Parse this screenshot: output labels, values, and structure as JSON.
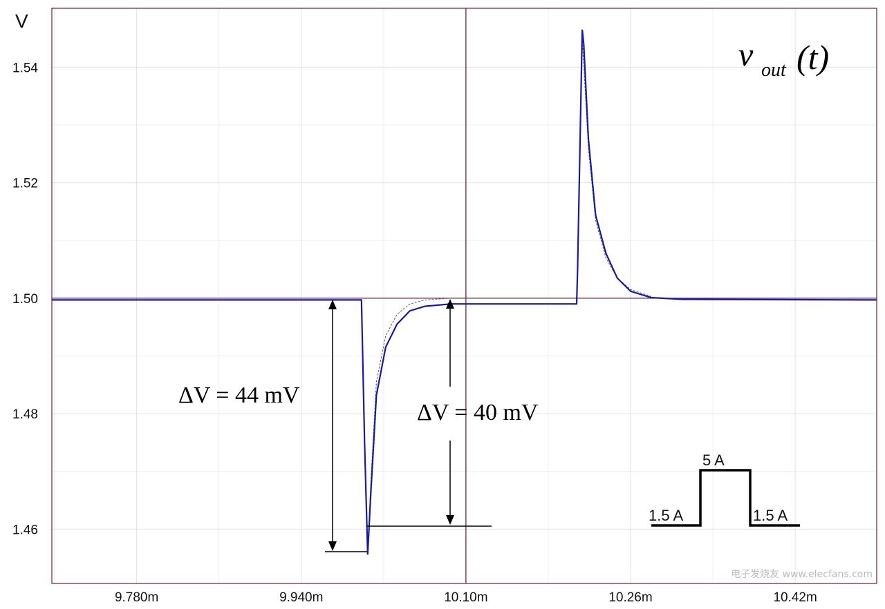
{
  "chart_data": {
    "type": "line",
    "title": "",
    "ylabel": "V",
    "xlabel": "",
    "xlim": [
      9.6976,
      10.4992
    ],
    "ylim": [
      1.4506,
      1.5502
    ],
    "x_ticks": [
      9.78,
      9.94,
      10.1,
      10.26,
      10.42
    ],
    "x_tick_labels": [
      "9.780m",
      "9.940m",
      "10.10m",
      "10.26m",
      "10.42m"
    ],
    "y_ticks": [
      1.46,
      1.48,
      1.5,
      1.52,
      1.54
    ],
    "y_tick_labels": [
      "1.46",
      "1.48",
      "1.50",
      "1.52",
      "1.54"
    ],
    "grid": true,
    "reference_lines": {
      "y": 1.5,
      "x": 10.1,
      "color": "#7a1f4a"
    },
    "series": [
      {
        "name": "vout measured",
        "color": "#1a1aa0",
        "x": [
          9.6976,
          9.9985,
          10.0015,
          10.0045,
          10.0075,
          10.013,
          10.022,
          10.033,
          10.0455,
          10.06,
          10.085,
          10.12,
          10.2076,
          10.2085,
          10.213,
          10.2145,
          10.219,
          10.226,
          10.236,
          10.247,
          10.26,
          10.28,
          10.31,
          10.4992
        ],
        "y": [
          1.4997,
          1.4997,
          1.475,
          1.4556,
          1.466,
          1.4832,
          1.4915,
          1.4955,
          1.4978,
          1.4986,
          1.499,
          1.499,
          1.499,
          1.505,
          1.5465,
          1.544,
          1.5276,
          1.5144,
          1.5078,
          1.5035,
          1.5012,
          1.5001,
          1.4998,
          1.4997
        ]
      },
      {
        "name": "vout simulated",
        "color": "#555555",
        "x": [
          10.0045,
          10.0075,
          10.013,
          10.022,
          10.033,
          10.0455,
          10.06,
          10.085,
          10.2076,
          10.213,
          10.219,
          10.226,
          10.236,
          10.247,
          10.26,
          10.28
        ],
        "y": [
          1.4556,
          1.468,
          1.4855,
          1.4935,
          1.4972,
          1.499,
          1.4997,
          1.5,
          1.5,
          1.545,
          1.526,
          1.5135,
          1.507,
          1.5035,
          1.5015,
          1.5003
        ]
      }
    ],
    "annotations": {
      "signal_label": {
        "main": "v",
        "sub": "out",
        "arg": "(t)"
      },
      "delta_44": "ΔV = 44 mV",
      "delta_40": "ΔV = 40 mV",
      "step_low_left": "1.5 A",
      "step_high": "5 A",
      "step_low_right": "1.5 A"
    },
    "watermark": "电子发烧友 www.elecfans.com"
  }
}
